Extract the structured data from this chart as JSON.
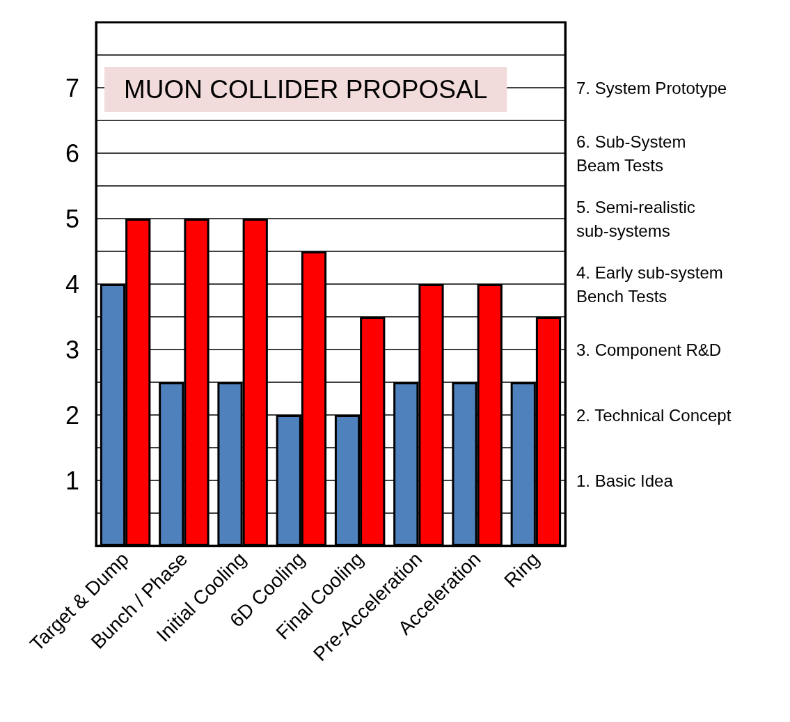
{
  "chart_data": {
    "type": "bar",
    "title": "MUON COLLIDER PROPOSAL",
    "categories": [
      "Target & Dump",
      "Bunch / Phase",
      "Initial Cooling",
      "6D Cooling",
      "Final Cooling",
      "Pre-Acceleration",
      "Acceleration",
      "Ring"
    ],
    "series": [
      {
        "color": "#4f81bd",
        "values": [
          4,
          2.5,
          2.5,
          2,
          2,
          2.5,
          2.5,
          2.5
        ]
      },
      {
        "color": "#ff0000",
        "values": [
          5,
          5,
          5,
          4.5,
          3.5,
          4,
          4,
          3.5
        ]
      }
    ],
    "ylim": [
      0,
      8
    ],
    "yticks": [
      {
        "value": 0.5,
        "label": null
      },
      1,
      {
        "value": 1.5,
        "label": null
      },
      2,
      {
        "value": 2.5,
        "label": null
      },
      3,
      {
        "value": 3.5,
        "label": null
      },
      4,
      {
        "value": 4.5,
        "label": null
      },
      5,
      {
        "value": 5.5,
        "label": null
      },
      6,
      {
        "value": 6.5,
        "label": null
      },
      7,
      {
        "value": 7.5,
        "label": null
      }
    ],
    "y2lim": [
      0,
      8
    ],
    "y2ticks": [
      {
        "value": 1,
        "label": "1. Basic Idea"
      },
      {
        "value": 2,
        "label": "2. Technical Concept"
      },
      {
        "value": 3,
        "label": "3. Component R&D"
      },
      {
        "value": 4,
        "label": "4. Early sub-system\nBench Tests"
      },
      {
        "value": 5,
        "label": "5. Semi-realistic\nsub-systems"
      },
      {
        "value": 6,
        "label": "6. Sub-System\nBeam Tests"
      },
      {
        "value": 7,
        "label": "7. System Prototype"
      }
    ],
    "grid": "y"
  }
}
